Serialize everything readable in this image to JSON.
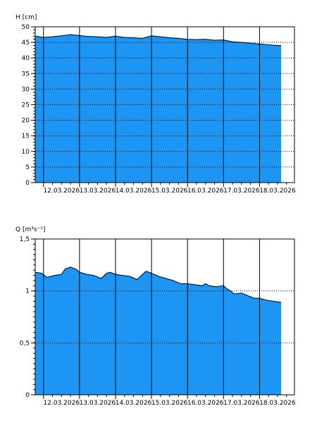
{
  "colors": {
    "fill": "#1C95F5",
    "line": "#000000",
    "background": "#ffffff",
    "grid": "#000000"
  },
  "date_labels": [
    "12.03.2026",
    "13.03.2026",
    "14.03.2026",
    "15.03.2026",
    "16.03.2026",
    "17.03.2026",
    "18.03.2026"
  ],
  "chart_data": [
    {
      "type": "area",
      "title": "",
      "ylabel": "H [cm]",
      "xlabel": "",
      "x_unit": "days from 12.03.2026 00:00",
      "xlim": [
        -0.23,
        6.97
      ],
      "ylim": [
        0,
        50
      ],
      "y_ticks": [
        0,
        5,
        10,
        15,
        20,
        25,
        30,
        35,
        40,
        45,
        50
      ],
      "y_tick_labels": [
        "0",
        "5",
        "10",
        "15",
        "20",
        "25",
        "30",
        "35",
        "40",
        "45",
        "50"
      ],
      "grid": "dotted horizontal",
      "legend": "none",
      "x": [
        -0.23,
        0.0,
        0.25,
        0.5,
        0.75,
        1.0,
        1.25,
        1.5,
        1.75,
        2.0,
        2.25,
        2.5,
        2.75,
        3.0,
        3.25,
        3.5,
        3.75,
        4.0,
        4.25,
        4.5,
        4.75,
        5.0,
        5.25,
        5.5,
        5.75,
        6.0,
        6.25,
        6.5,
        6.6
      ],
      "values": [
        47.0,
        46.6,
        46.8,
        47.1,
        47.5,
        47.2,
        46.9,
        46.8,
        46.6,
        47.0,
        46.6,
        46.5,
        46.3,
        47.1,
        46.8,
        46.5,
        46.3,
        46.0,
        45.9,
        46.0,
        45.7,
        45.8,
        45.2,
        45.0,
        44.7,
        44.5,
        44.2,
        44.0,
        44.0
      ]
    },
    {
      "type": "area",
      "title": "",
      "ylabel": "Q [m³s⁻¹]",
      "xlabel": "",
      "x_unit": "days from 12.03.2026 00:00",
      "xlim": [
        -0.23,
        6.97
      ],
      "ylim": [
        0,
        1.5
      ],
      "y_ticks": [
        0,
        0.5,
        1,
        1.5
      ],
      "y_tick_labels": [
        "0",
        "0,5",
        "1",
        "1,5"
      ],
      "grid": "dotted horizontal",
      "legend": "none",
      "x": [
        -0.23,
        -0.05,
        0.1,
        0.3,
        0.5,
        0.6,
        0.75,
        0.9,
        1.0,
        1.2,
        1.4,
        1.6,
        1.75,
        1.85,
        2.0,
        2.2,
        2.4,
        2.6,
        2.75,
        2.85,
        3.0,
        3.2,
        3.4,
        3.6,
        3.8,
        4.0,
        4.2,
        4.4,
        4.5,
        4.6,
        4.8,
        5.0,
        5.1,
        5.2,
        5.3,
        5.5,
        5.7,
        5.85,
        6.0,
        6.2,
        6.4,
        6.6
      ],
      "values": [
        1.18,
        1.17,
        1.13,
        1.15,
        1.16,
        1.21,
        1.23,
        1.21,
        1.18,
        1.16,
        1.15,
        1.12,
        1.17,
        1.18,
        1.16,
        1.15,
        1.14,
        1.11,
        1.16,
        1.19,
        1.17,
        1.14,
        1.12,
        1.1,
        1.07,
        1.07,
        1.06,
        1.05,
        1.07,
        1.05,
        1.04,
        1.05,
        1.02,
        1.0,
        0.97,
        0.98,
        0.95,
        0.93,
        0.93,
        0.91,
        0.9,
        0.89
      ]
    }
  ]
}
